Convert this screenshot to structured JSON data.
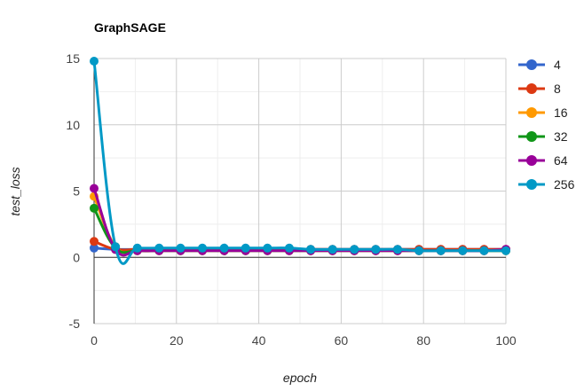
{
  "chart_data": {
    "type": "line",
    "title": "GraphSAGE",
    "xlabel": "epoch",
    "ylabel": "test_loss",
    "xlim": [
      0,
      100
    ],
    "ylim": [
      -5,
      15
    ],
    "xticks": [
      0,
      20,
      40,
      60,
      80,
      100
    ],
    "yticks": [
      -5,
      0,
      5,
      10,
      15
    ],
    "grid": true,
    "legend_position": "right",
    "x": [
      0,
      5.2,
      10.5,
      15.8,
      21,
      26.3,
      31.6,
      36.8,
      42.1,
      47.4,
      52.6,
      57.9,
      63.2,
      68.4,
      73.7,
      78.9,
      84.2,
      89.5,
      94.7,
      100
    ],
    "series": [
      {
        "name": "4",
        "color": "#3366cc",
        "values": [
          0.7,
          0.6,
          0.6,
          0.6,
          0.6,
          0.6,
          0.6,
          0.6,
          0.6,
          0.6,
          0.6,
          0.6,
          0.6,
          0.6,
          0.6,
          0.6,
          0.6,
          0.6,
          0.6,
          0.6
        ]
      },
      {
        "name": "8",
        "color": "#dc3912",
        "values": [
          1.2,
          0.6,
          0.6,
          0.6,
          0.6,
          0.6,
          0.6,
          0.6,
          0.6,
          0.6,
          0.6,
          0.6,
          0.6,
          0.6,
          0.6,
          0.6,
          0.6,
          0.6,
          0.6,
          0.6
        ]
      },
      {
        "name": "16",
        "color": "#ff9900",
        "values": [
          4.6,
          0.8,
          0.5,
          0.5,
          0.5,
          0.5,
          0.5,
          0.5,
          0.5,
          0.5,
          0.5,
          0.5,
          0.5,
          0.5,
          0.5,
          0.5,
          0.5,
          0.5,
          0.5,
          0.5
        ]
      },
      {
        "name": "32",
        "color": "#109618",
        "values": [
          3.7,
          0.7,
          0.5,
          0.5,
          0.5,
          0.5,
          0.5,
          0.5,
          0.5,
          0.5,
          0.5,
          0.5,
          0.5,
          0.5,
          0.5,
          0.5,
          0.5,
          0.5,
          0.5,
          0.5
        ]
      },
      {
        "name": "64",
        "color": "#990099",
        "values": [
          5.2,
          0.6,
          0.5,
          0.5,
          0.5,
          0.5,
          0.5,
          0.5,
          0.5,
          0.5,
          0.5,
          0.5,
          0.5,
          0.5,
          0.5,
          0.5,
          0.5,
          0.5,
          0.5,
          0.6
        ]
      },
      {
        "name": "256",
        "color": "#0099c6",
        "values": [
          14.8,
          0.8,
          0.7,
          0.7,
          0.7,
          0.7,
          0.7,
          0.7,
          0.7,
          0.7,
          0.6,
          0.6,
          0.6,
          0.6,
          0.6,
          0.5,
          0.5,
          0.5,
          0.5,
          0.5
        ]
      }
    ]
  }
}
